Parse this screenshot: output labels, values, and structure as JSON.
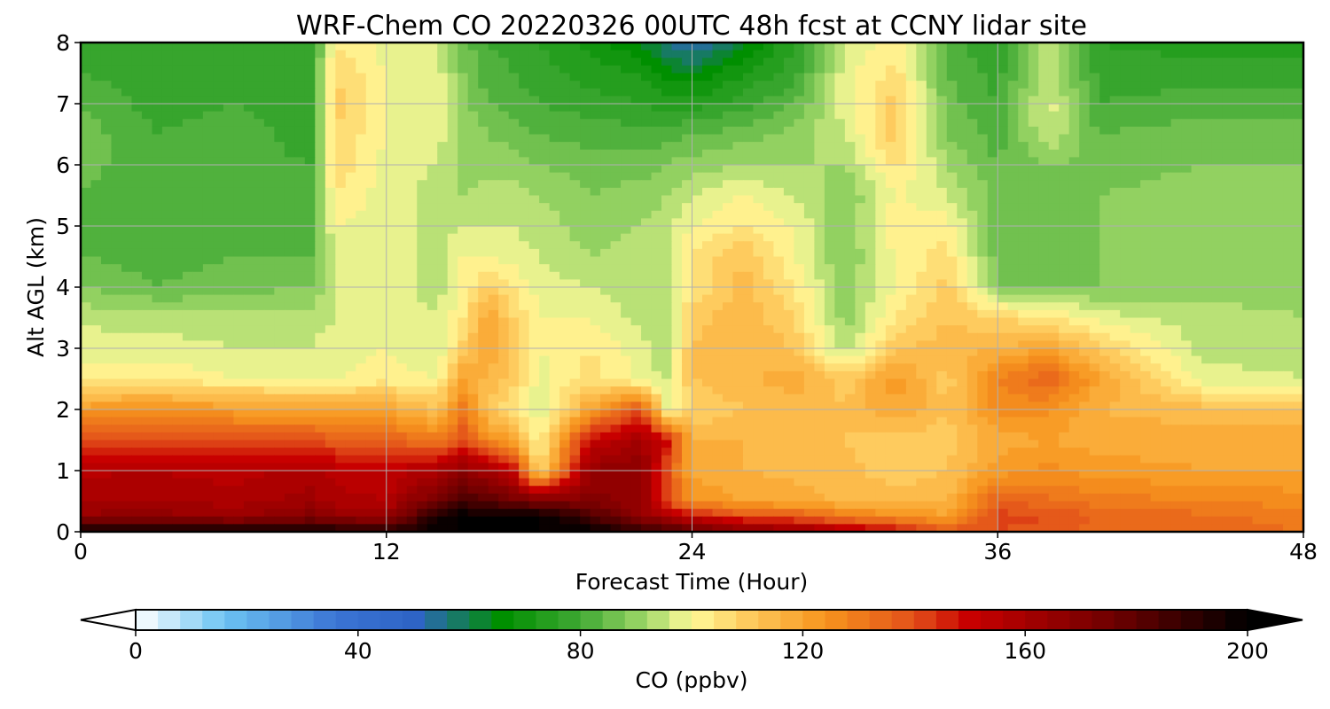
{
  "chart_data": {
    "type": "heatmap",
    "title": "WRF-Chem CO  20220326 00UTC 48h fcst at CCNY lidar site",
    "xlabel": "Forecast Time (Hour)",
    "ylabel": "Alt AGL (km)",
    "xlim": [
      0,
      48
    ],
    "ylim": [
      0,
      8
    ],
    "xticks": [
      0,
      12,
      24,
      36,
      48
    ],
    "yticks": [
      0,
      1,
      2,
      3,
      4,
      5,
      6,
      7,
      8
    ],
    "grid": true,
    "colorbar": {
      "label": "CO  (ppbv)",
      "range": [
        0,
        200
      ],
      "ticks": [
        0,
        40,
        80,
        120,
        160,
        200
      ],
      "extend": "both",
      "colors": [
        {
          "value": 0,
          "color": "#ffffff"
        },
        {
          "value": 16,
          "color": "#6cc3f2"
        },
        {
          "value": 36,
          "color": "#3b74d4"
        },
        {
          "value": 50,
          "color": "#2e64c6"
        },
        {
          "value": 66,
          "color": "#008f00"
        },
        {
          "value": 80,
          "color": "#40a934"
        },
        {
          "value": 92,
          "color": "#a2d96a"
        },
        {
          "value": 100,
          "color": "#fffa9a"
        },
        {
          "value": 110,
          "color": "#fecb5e"
        },
        {
          "value": 124,
          "color": "#f7941d"
        },
        {
          "value": 140,
          "color": "#e2501a"
        },
        {
          "value": 150,
          "color": "#c80000"
        },
        {
          "value": 176,
          "color": "#6e0000"
        },
        {
          "value": 200,
          "color": "#000000"
        }
      ]
    },
    "times": [
      0,
      3,
      6,
      9,
      10,
      12,
      14,
      15,
      16,
      17,
      18,
      20,
      22,
      23,
      24,
      26,
      28,
      30,
      32,
      34,
      36,
      38,
      40,
      44,
      48
    ],
    "altitudes": [
      0,
      0.25,
      0.5,
      1,
      1.5,
      2,
      2.5,
      3,
      3.5,
      4,
      4.5,
      5,
      5.5,
      6,
      6.5,
      7,
      7.5,
      8
    ],
    "values": [
      [
        198,
        200,
        197,
        196,
        196,
        192,
        200,
        200,
        200,
        200,
        200,
        200,
        190,
        185,
        180,
        170,
        165,
        158,
        150,
        140,
        140,
        138,
        134,
        134,
        132
      ],
      [
        165,
        166,
        163,
        170,
        165,
        163,
        195,
        200,
        200,
        200,
        200,
        185,
        165,
        160,
        150,
        140,
        138,
        130,
        126,
        120,
        142,
        140,
        135,
        133,
        130
      ],
      [
        160,
        160,
        158,
        162,
        158,
        156,
        175,
        185,
        180,
        175,
        172,
        170,
        165,
        140,
        125,
        120,
        118,
        115,
        114,
        115,
        136,
        133,
        130,
        128,
        126
      ],
      [
        155,
        156,
        154,
        158,
        154,
        152,
        158,
        166,
        160,
        150,
        104,
        165,
        168,
        140,
        118,
        116,
        115,
        113,
        110,
        112,
        122,
        125,
        122,
        120,
        120
      ],
      [
        138,
        140,
        138,
        140,
        137,
        136,
        130,
        140,
        125,
        120,
        100,
        150,
        160,
        150,
        116,
        116,
        114,
        112,
        110,
        110,
        118,
        120,
        118,
        118,
        118
      ],
      [
        122,
        125,
        122,
        120,
        120,
        120,
        112,
        130,
        112,
        104,
        96,
        120,
        140,
        100,
        108,
        112,
        115,
        112,
        120,
        112,
        125,
        125,
        116,
        114,
        114
      ],
      [
        103,
        103,
        100,
        100,
        100,
        102,
        100,
        120,
        115,
        110,
        98,
        106,
        98,
        96,
        112,
        115,
        118,
        110,
        122,
        110,
        128,
        136,
        120,
        98,
        96
      ],
      [
        98,
        98,
        96,
        96,
        98,
        100,
        96,
        110,
        120,
        110,
        100,
        104,
        98,
        92,
        112,
        116,
        112,
        92,
        112,
        114,
        116,
        120,
        110,
        94,
        94
      ],
      [
        95,
        94,
        93,
        94,
        96,
        100,
        96,
        104,
        120,
        108,
        100,
        100,
        94,
        92,
        110,
        115,
        108,
        90,
        104,
        112,
        108,
        104,
        98,
        94,
        92
      ],
      [
        88,
        84,
        86,
        88,
        96,
        98,
        94,
        100,
        110,
        104,
        98,
        96,
        94,
        92,
        104,
        114,
        104,
        90,
        100,
        110,
        88,
        88,
        88,
        90,
        90
      ],
      [
        84,
        82,
        84,
        84,
        96,
        98,
        94,
        100,
        100,
        98,
        96,
        92,
        94,
        94,
        104,
        112,
        100,
        88,
        100,
        106,
        86,
        86,
        88,
        90,
        90
      ],
      [
        82,
        80,
        84,
        82,
        100,
        98,
        94,
        96,
        96,
        96,
        94,
        90,
        92,
        94,
        100,
        104,
        100,
        88,
        104,
        102,
        84,
        86,
        88,
        90,
        90
      ],
      [
        84,
        80,
        84,
        80,
        104,
        98,
        94,
        92,
        94,
        94,
        92,
        88,
        90,
        92,
        96,
        100,
        96,
        88,
        100,
        96,
        86,
        88,
        88,
        90,
        90
      ],
      [
        86,
        80,
        82,
        80,
        108,
        98,
        96,
        90,
        90,
        90,
        88,
        86,
        86,
        88,
        90,
        92,
        92,
        92,
        106,
        92,
        84,
        88,
        86,
        88,
        88
      ],
      [
        86,
        80,
        82,
        78,
        108,
        100,
        98,
        90,
        88,
        86,
        84,
        82,
        82,
        82,
        84,
        86,
        90,
        96,
        110,
        88,
        82,
        96,
        84,
        86,
        86
      ],
      [
        84,
        78,
        80,
        78,
        110,
        100,
        98,
        90,
        84,
        82,
        80,
        78,
        76,
        74,
        74,
        78,
        84,
        98,
        110,
        86,
        80,
        98,
        80,
        82,
        82
      ],
      [
        80,
        78,
        78,
        76,
        108,
        100,
        98,
        88,
        82,
        80,
        78,
        74,
        72,
        66,
        64,
        72,
        78,
        98,
        106,
        84,
        78,
        96,
        78,
        78,
        78
      ],
      [
        78,
        78,
        76,
        76,
        104,
        98,
        98,
        86,
        80,
        78,
        76,
        70,
        64,
        56,
        50,
        62,
        76,
        96,
        102,
        82,
        76,
        94,
        76,
        74,
        74
      ]
    ]
  }
}
